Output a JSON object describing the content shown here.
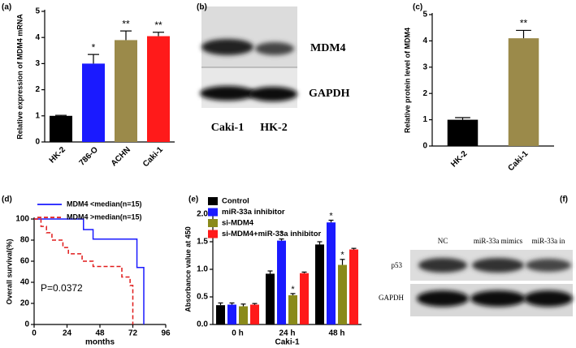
{
  "chart_data": [
    {
      "type": "bar",
      "panel_label": "(a)",
      "ylabel": "Relative expression of MDM4 mRNA",
      "categories": [
        "HK-2",
        "786-O",
        "ACHN",
        "Caki-1"
      ],
      "values": [
        1.0,
        3.0,
        3.9,
        4.05
      ],
      "errors": [
        0.02,
        0.35,
        0.35,
        0.15
      ],
      "colors": [
        "#000000",
        "#1a1aff",
        "#9b8a4a",
        "#ff1a1a"
      ],
      "significance": [
        null,
        "*",
        "**",
        "**"
      ],
      "ylim": [
        0,
        5
      ],
      "yticks": [
        0,
        1,
        2,
        3,
        4,
        5
      ]
    },
    {
      "type": "bar",
      "panel_label": "(c)",
      "ylabel": "Relative protein level of MDM4",
      "categories": [
        "HK-2",
        "Caki-1"
      ],
      "values": [
        1.0,
        4.1
      ],
      "errors": [
        0.08,
        0.3
      ],
      "colors": [
        "#000000",
        "#9b8a4a"
      ],
      "significance": [
        null,
        "**"
      ],
      "ylim": [
        0,
        5
      ],
      "yticks": [
        0,
        1,
        2,
        3,
        4,
        5
      ]
    },
    {
      "type": "line",
      "panel_label": "(d)",
      "xlabel": "months",
      "ylabel": "Overall survival(%)",
      "annotation": "P=0.0372",
      "xlim": [
        0,
        96
      ],
      "xticks": [
        0,
        24,
        48,
        72,
        96
      ],
      "ylim": [
        0,
        100
      ],
      "yticks": [
        0,
        20,
        40,
        60,
        80,
        100
      ],
      "series": [
        {
          "name": "MDM4 <median(n=15)",
          "color": "#1a1aff",
          "dashed": false,
          "x": [
            0,
            36,
            36,
            43,
            43,
            75,
            75,
            80,
            80
          ],
          "values": [
            100,
            100,
            90,
            90,
            81,
            81,
            54,
            54,
            0
          ]
        },
        {
          "name": "MDM4 >median(n=15)",
          "color": "#e01a1a",
          "dashed": true,
          "x": [
            0,
            5,
            5,
            9,
            9,
            13,
            13,
            21,
            21,
            25,
            25,
            35,
            35,
            43,
            43,
            64,
            64,
            70,
            70,
            72,
            72
          ],
          "values": [
            100,
            100,
            93,
            93,
            87,
            87,
            80,
            80,
            73,
            73,
            67,
            67,
            60,
            60,
            55,
            55,
            45,
            45,
            37,
            37,
            0
          ]
        }
      ]
    },
    {
      "type": "grouped_bar",
      "panel_label": "(e)",
      "xlabel": "Caki-1",
      "ylabel": "Absorbance value at 450",
      "categories": [
        "0 h",
        "24 h",
        "48 h"
      ],
      "ylim": [
        0,
        2
      ],
      "yticks": [
        {
          "value": 0,
          "label": "0.0"
        },
        0.5,
        {
          "value": 1,
          "label": "1.0"
        },
        1.5,
        {
          "value": 2,
          "label": "2.0"
        }
      ],
      "series": [
        {
          "name": "Control",
          "color": "#000000",
          "values": [
            0.35,
            0.92,
            1.45
          ],
          "errors": [
            0.04,
            0.05,
            0.05
          ],
          "significance": [
            null,
            null,
            null
          ]
        },
        {
          "name": "miR-33a inhibitor",
          "color": "#1a1aff",
          "values": [
            0.36,
            1.52,
            1.85
          ],
          "errors": [
            0.03,
            0.03,
            0.04
          ],
          "significance": [
            null,
            "*",
            "*"
          ]
        },
        {
          "name": "si-MDM4",
          "color": "#8a8a1a",
          "values": [
            0.33,
            0.53,
            1.08
          ],
          "errors": [
            0.04,
            0.03,
            0.1
          ],
          "significance": [
            null,
            "*",
            "*"
          ]
        },
        {
          "name": "si-MDM4+miR-33a inhibitor",
          "color": "#ff1a1a",
          "values": [
            0.36,
            0.93,
            1.36
          ],
          "errors": [
            0.02,
            0.02,
            0.02
          ],
          "significance": [
            null,
            null,
            null
          ]
        }
      ]
    }
  ],
  "blots": [
    {
      "panel_label": "(b)",
      "row_labels": [
        "MDM4",
        "GAPDH"
      ],
      "lane_labels": [
        "Caki-1",
        "HK-2"
      ]
    },
    {
      "panel_label": "(f)",
      "row_labels": [
        "p53",
        "GAPDH"
      ],
      "lane_labels": [
        "NC",
        "miR-33a mimics",
        "miR-33a in"
      ]
    }
  ]
}
